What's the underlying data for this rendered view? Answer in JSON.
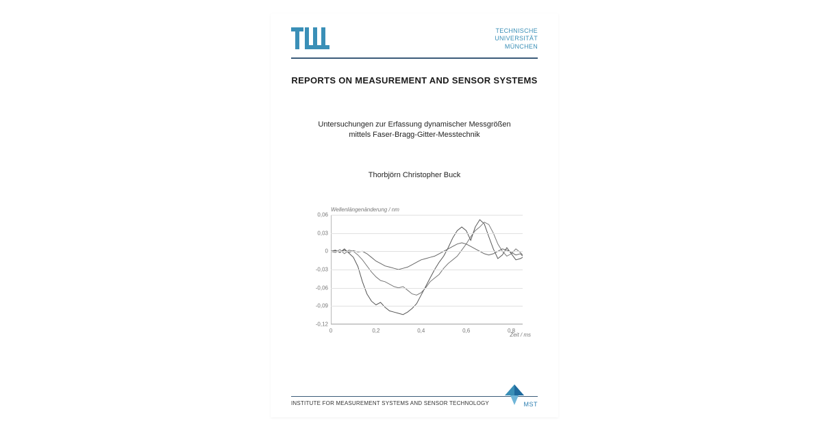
{
  "header": {
    "logo_color": "#3a8fb7",
    "university_line1": "TECHNISCHE",
    "university_line2": "UNIVERSITÄT",
    "university_line3": "MÜNCHEN"
  },
  "series_title": "REPORTS ON MEASUREMENT AND SENSOR SYSTEMS",
  "thesis_title_line1": "Untersuchungen zur Erfassung dynamischer Messgrößen",
  "thesis_title_line2": "mittels Faser-Bragg-Gitter-Messtechnik",
  "author": "Thorbjörn Christopher Buck",
  "chart": {
    "type": "line",
    "ylabel": "Wellenlängenänderung / nm",
    "xlabel": "Zeit / ms",
    "ylim": [
      -0.12,
      0.06
    ],
    "xlim": [
      0,
      0.85
    ],
    "yticks": [
      0.06,
      0.03,
      0,
      -0.03,
      -0.06,
      -0.09,
      -0.12
    ],
    "ytick_labels": [
      "0,06",
      "0,03",
      "0",
      "-0,03",
      "-0,06",
      "-0,09",
      "-0,12"
    ],
    "xticks": [
      0,
      0.2,
      0.4,
      0.6,
      0.8
    ],
    "xtick_labels": [
      "0",
      "0,2",
      "0,4",
      "0,6",
      "0,8"
    ],
    "grid_color": "#e0e0e0",
    "axis_color": "#b8b8b8",
    "background_color": "#ffffff",
    "tick_fontsize": 8,
    "label_fontsize": 8,
    "line_width": 1,
    "series": [
      {
        "name": "trace1",
        "color": "#555555",
        "points": [
          [
            0.0,
            0.0
          ],
          [
            0.02,
            0.002
          ],
          [
            0.04,
            -0.002
          ],
          [
            0.06,
            0.004
          ],
          [
            0.08,
            -0.003
          ],
          [
            0.1,
            -0.01
          ],
          [
            0.12,
            -0.025
          ],
          [
            0.14,
            -0.05
          ],
          [
            0.16,
            -0.07
          ],
          [
            0.18,
            -0.082
          ],
          [
            0.2,
            -0.088
          ],
          [
            0.22,
            -0.084
          ],
          [
            0.24,
            -0.092
          ],
          [
            0.26,
            -0.098
          ],
          [
            0.28,
            -0.1
          ],
          [
            0.3,
            -0.102
          ],
          [
            0.32,
            -0.104
          ],
          [
            0.34,
            -0.1
          ],
          [
            0.36,
            -0.094
          ],
          [
            0.38,
            -0.086
          ],
          [
            0.4,
            -0.072
          ],
          [
            0.42,
            -0.058
          ],
          [
            0.44,
            -0.044
          ],
          [
            0.46,
            -0.03
          ],
          [
            0.48,
            -0.018
          ],
          [
            0.5,
            -0.008
          ],
          [
            0.52,
            0.006
          ],
          [
            0.54,
            0.022
          ],
          [
            0.56,
            0.034
          ],
          [
            0.58,
            0.04
          ],
          [
            0.6,
            0.034
          ],
          [
            0.62,
            0.018
          ],
          [
            0.64,
            0.04
          ],
          [
            0.66,
            0.052
          ],
          [
            0.68,
            0.045
          ],
          [
            0.7,
            0.024
          ],
          [
            0.72,
            0.004
          ],
          [
            0.74,
            -0.012
          ],
          [
            0.76,
            -0.006
          ],
          [
            0.78,
            0.006
          ],
          [
            0.8,
            -0.004
          ],
          [
            0.82,
            -0.014
          ],
          [
            0.84,
            -0.012
          ],
          [
            0.85,
            -0.01
          ]
        ]
      },
      {
        "name": "trace2",
        "color": "#777777",
        "points": [
          [
            0.0,
            0.0
          ],
          [
            0.02,
            -0.002
          ],
          [
            0.04,
            0.003
          ],
          [
            0.06,
            -0.004
          ],
          [
            0.08,
            0.002
          ],
          [
            0.1,
            0.0
          ],
          [
            0.12,
            -0.006
          ],
          [
            0.14,
            -0.014
          ],
          [
            0.16,
            -0.024
          ],
          [
            0.18,
            -0.034
          ],
          [
            0.2,
            -0.042
          ],
          [
            0.22,
            -0.048
          ],
          [
            0.24,
            -0.05
          ],
          [
            0.26,
            -0.054
          ],
          [
            0.28,
            -0.058
          ],
          [
            0.3,
            -0.06
          ],
          [
            0.32,
            -0.058
          ],
          [
            0.34,
            -0.064
          ],
          [
            0.36,
            -0.07
          ],
          [
            0.38,
            -0.072
          ],
          [
            0.4,
            -0.068
          ],
          [
            0.42,
            -0.06
          ],
          [
            0.44,
            -0.05
          ],
          [
            0.46,
            -0.044
          ],
          [
            0.48,
            -0.038
          ],
          [
            0.5,
            -0.028
          ],
          [
            0.52,
            -0.02
          ],
          [
            0.54,
            -0.014
          ],
          [
            0.56,
            -0.008
          ],
          [
            0.58,
            0.002
          ],
          [
            0.6,
            0.012
          ],
          [
            0.62,
            0.024
          ],
          [
            0.64,
            0.034
          ],
          [
            0.66,
            0.04
          ],
          [
            0.68,
            0.048
          ],
          [
            0.7,
            0.044
          ],
          [
            0.72,
            0.03
          ],
          [
            0.74,
            0.012
          ],
          [
            0.76,
            0.0
          ],
          [
            0.78,
            -0.008
          ],
          [
            0.8,
            -0.004
          ],
          [
            0.82,
            0.004
          ],
          [
            0.84,
            -0.002
          ],
          [
            0.85,
            -0.006
          ]
        ]
      },
      {
        "name": "trace3",
        "color": "#666666",
        "points": [
          [
            0.0,
            0.0
          ],
          [
            0.02,
            0.001
          ],
          [
            0.04,
            -0.001
          ],
          [
            0.06,
            0.002
          ],
          [
            0.08,
            -0.002
          ],
          [
            0.1,
            0.001
          ],
          [
            0.12,
            -0.001
          ],
          [
            0.14,
            0.0
          ],
          [
            0.16,
            -0.004
          ],
          [
            0.18,
            -0.01
          ],
          [
            0.2,
            -0.016
          ],
          [
            0.22,
            -0.02
          ],
          [
            0.24,
            -0.024
          ],
          [
            0.26,
            -0.026
          ],
          [
            0.28,
            -0.028
          ],
          [
            0.3,
            -0.03
          ],
          [
            0.32,
            -0.028
          ],
          [
            0.34,
            -0.026
          ],
          [
            0.36,
            -0.022
          ],
          [
            0.38,
            -0.018
          ],
          [
            0.4,
            -0.014
          ],
          [
            0.42,
            -0.012
          ],
          [
            0.44,
            -0.01
          ],
          [
            0.46,
            -0.008
          ],
          [
            0.48,
            -0.004
          ],
          [
            0.5,
            0.0
          ],
          [
            0.52,
            0.004
          ],
          [
            0.54,
            0.008
          ],
          [
            0.56,
            0.012
          ],
          [
            0.58,
            0.014
          ],
          [
            0.6,
            0.012
          ],
          [
            0.62,
            0.008
          ],
          [
            0.64,
            0.004
          ],
          [
            0.66,
            0.0
          ],
          [
            0.68,
            -0.004
          ],
          [
            0.7,
            -0.006
          ],
          [
            0.72,
            -0.004
          ],
          [
            0.74,
            0.0
          ],
          [
            0.76,
            0.004
          ],
          [
            0.78,
            0.002
          ],
          [
            0.8,
            -0.002
          ],
          [
            0.82,
            -0.006
          ],
          [
            0.84,
            -0.004
          ],
          [
            0.85,
            -0.008
          ]
        ]
      }
    ]
  },
  "footer": {
    "institute": "INSTITUTE FOR MEASUREMENT SYSTEMS AND SENSOR TECHNOLOGY",
    "mst_label": "MST",
    "logo_color": "#2a7db0",
    "rule_color": "#3a5a78"
  }
}
